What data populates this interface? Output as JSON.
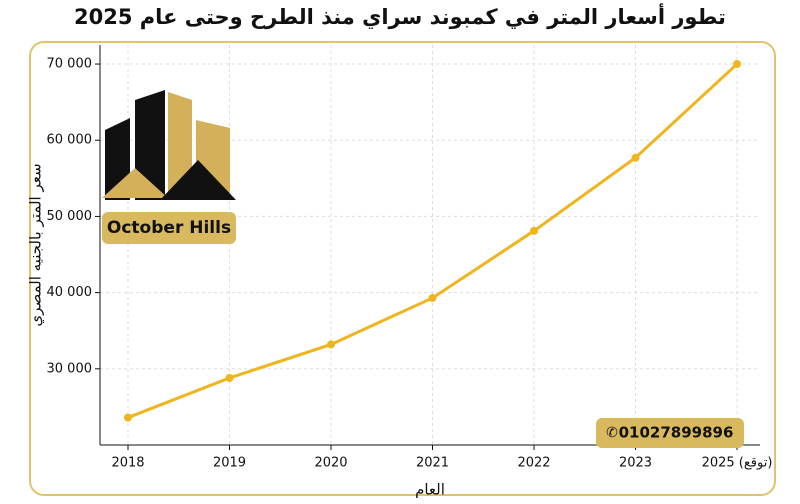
{
  "chart_data": {
    "type": "line",
    "title": "تطور أسعار المتر في كمبوند سراي منذ الطرح وحتى عام 2025",
    "x_label": "العام",
    "y_label": "سعر المتر بالجنيه المصري",
    "categories": [
      "2018",
      "2019",
      "2020",
      "2021",
      "2022",
      "2023",
      "2025 (توقع)"
    ],
    "series": [
      {
        "name": "سعر المتر",
        "color": "#f0b41c",
        "values": [
          23600,
          28800,
          33200,
          39300,
          48100,
          57700,
          70000
        ]
      }
    ],
    "ylim": [
      20000,
      72500
    ],
    "yticks": [
      {
        "value": 30000,
        "label": "30 000"
      },
      {
        "value": 40000,
        "label": "40 000"
      },
      {
        "value": 50000,
        "label": "50 000"
      },
      {
        "value": 60000,
        "label": "60 000"
      },
      {
        "value": 70000,
        "label": "70 000"
      }
    ],
    "grid": true
  },
  "branding": {
    "logo_text": "October Hills",
    "phone": "01027899896"
  }
}
